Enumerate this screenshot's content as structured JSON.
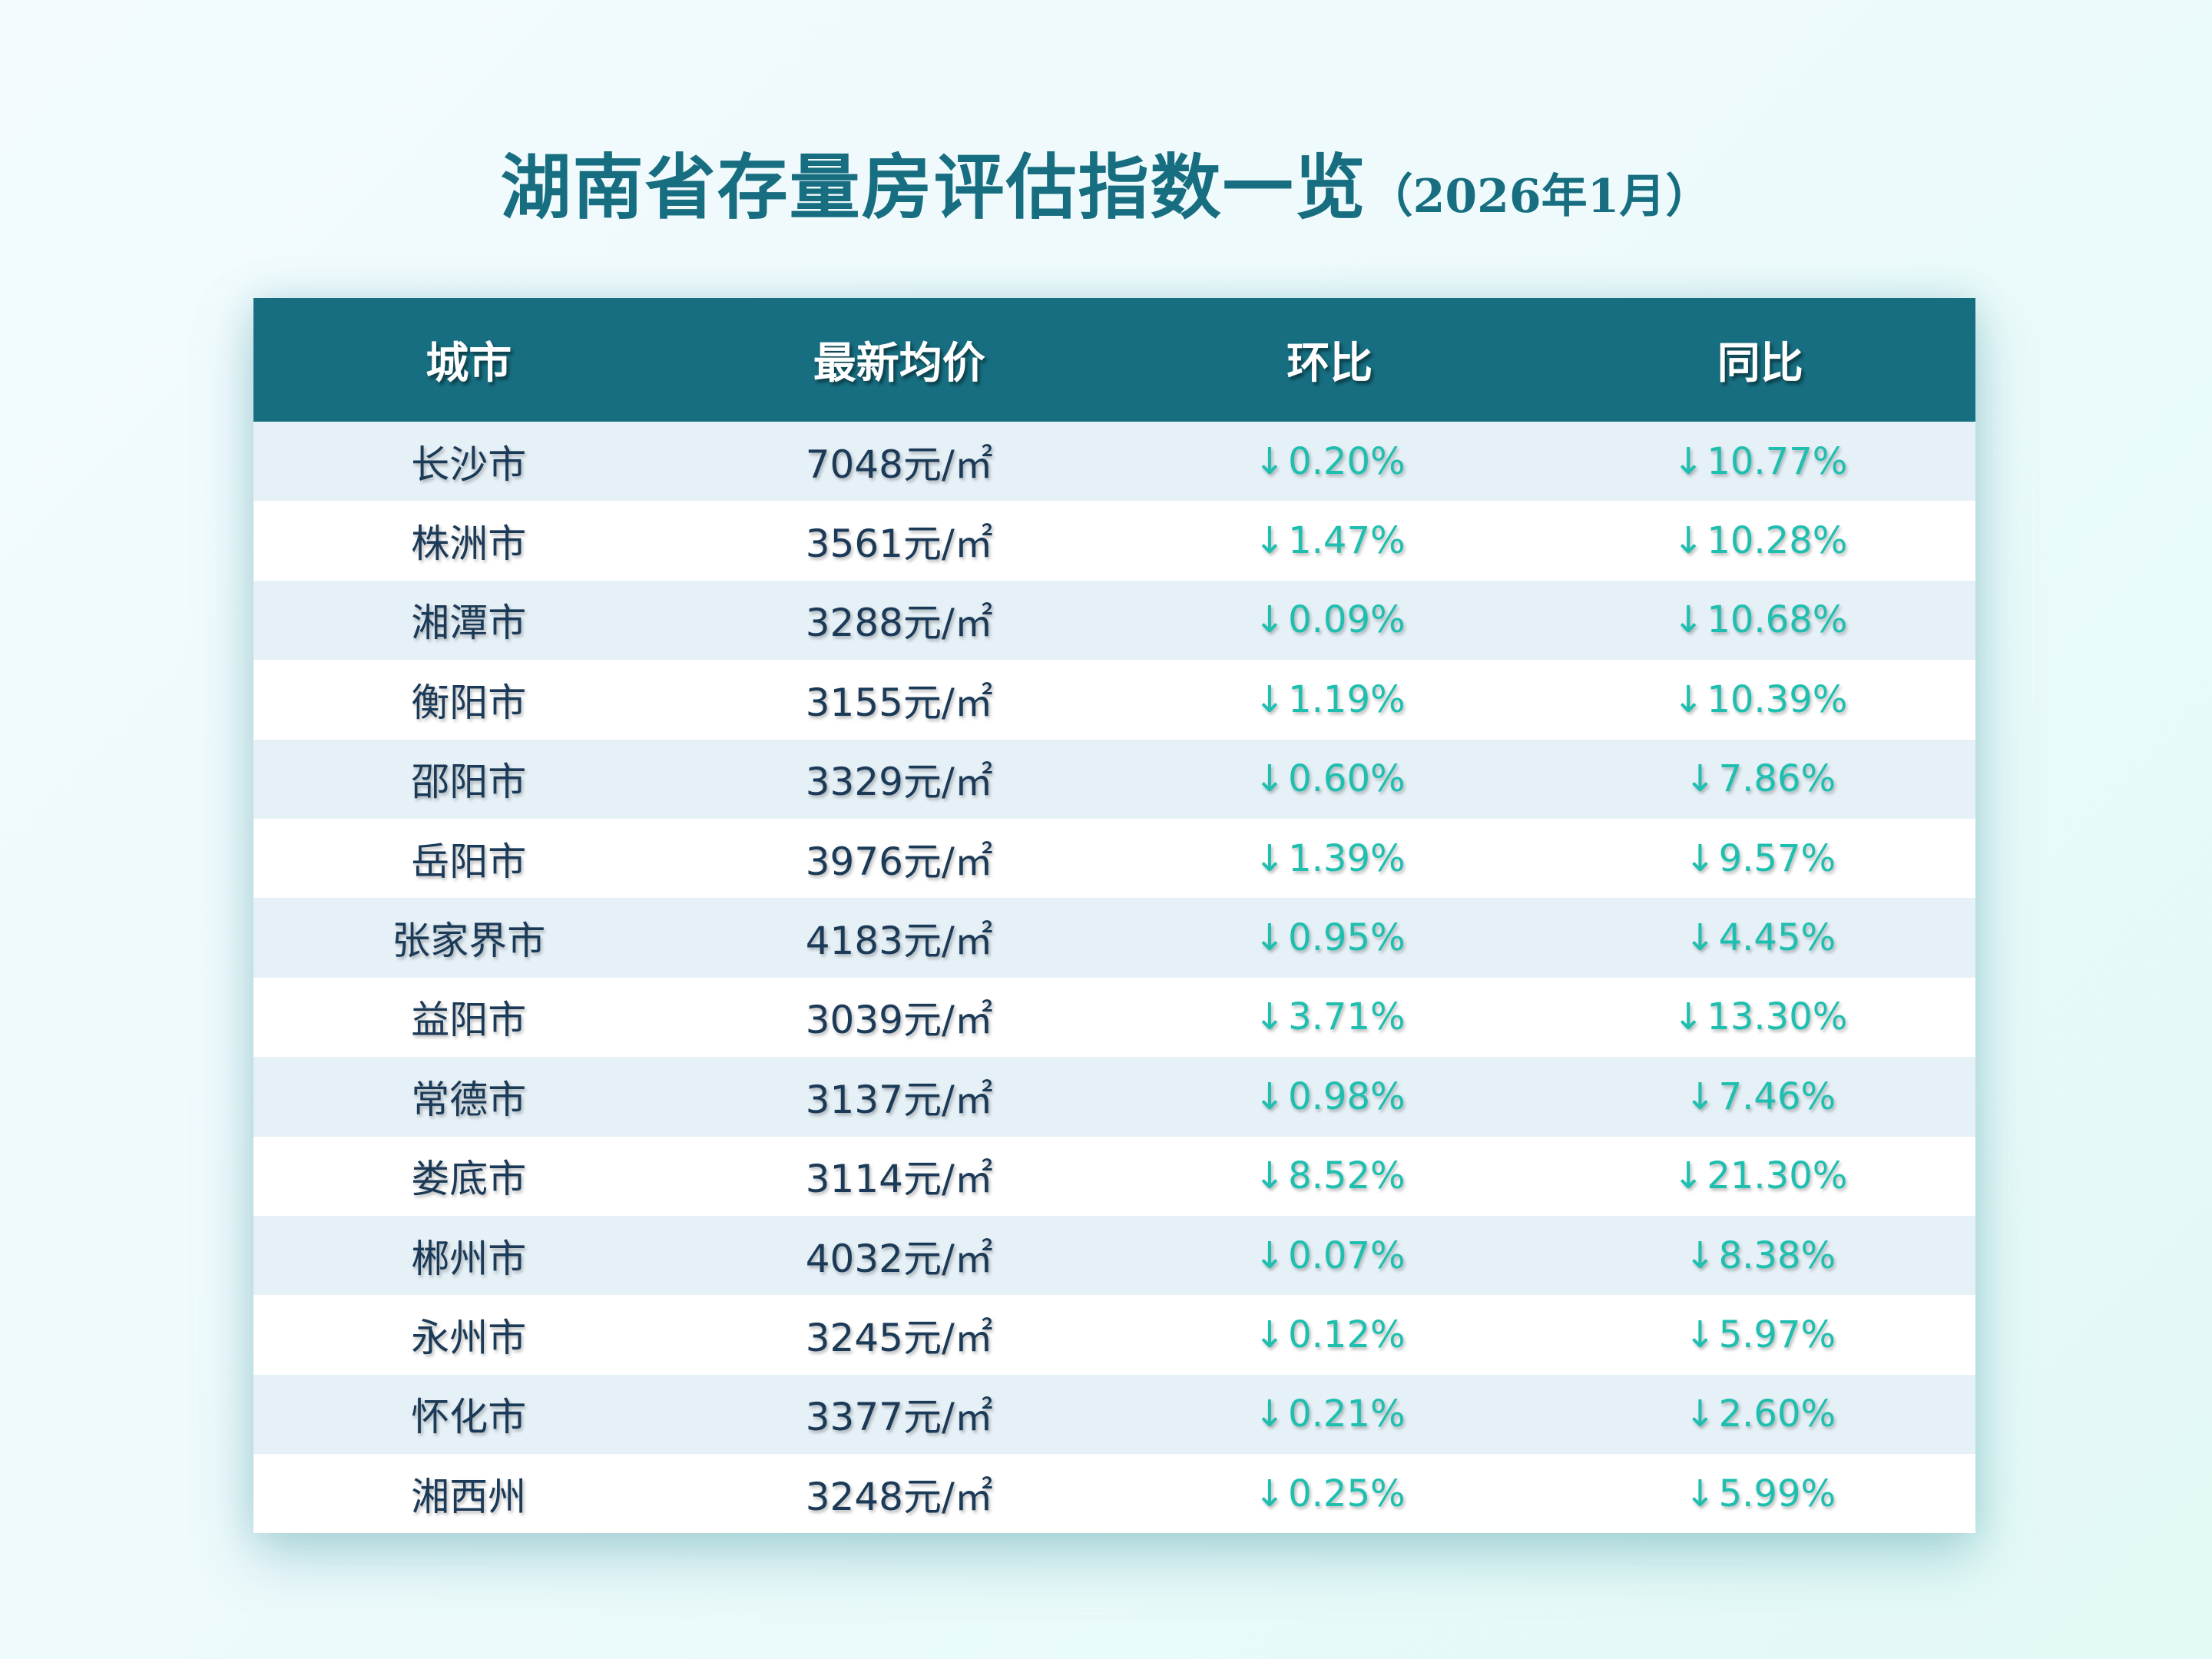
{
  "title": {
    "main": "湖南省存量房评估指数一览",
    "sub": "（2026年1月）"
  },
  "colors": {
    "title": "#176e80",
    "header_bg": "#166e80",
    "header_text": "#ffffff",
    "row_alt_bg": "#e6f1f7",
    "row_bg": "#ffffff",
    "body_text": "#1b3a57",
    "change_text": "#1fbfb0"
  },
  "table": {
    "headers": [
      "城市",
      "最新均价",
      "环比",
      "同比"
    ],
    "down_arrow": "↓",
    "unit": "元/㎡",
    "rows": [
      {
        "city": "长沙市",
        "price": "7048元/㎡",
        "mom": "0.20%",
        "yoy": "10.77%"
      },
      {
        "city": "株洲市",
        "price": "3561元/㎡",
        "mom": "1.47%",
        "yoy": "10.28%"
      },
      {
        "city": "湘潭市",
        "price": "3288元/㎡",
        "mom": "0.09%",
        "yoy": "10.68%"
      },
      {
        "city": "衡阳市",
        "price": "3155元/㎡",
        "mom": "1.19%",
        "yoy": "10.39%"
      },
      {
        "city": "邵阳市",
        "price": "3329元/㎡",
        "mom": "0.60%",
        "yoy": "7.86%"
      },
      {
        "city": "岳阳市",
        "price": "3976元/㎡",
        "mom": "1.39%",
        "yoy": "9.57%"
      },
      {
        "city": "张家界市",
        "price": "4183元/㎡",
        "mom": "0.95%",
        "yoy": "4.45%"
      },
      {
        "city": "益阳市",
        "price": "3039元/㎡",
        "mom": "3.71%",
        "yoy": "13.30%"
      },
      {
        "city": "常德市",
        "price": "3137元/㎡",
        "mom": "0.98%",
        "yoy": "7.46%"
      },
      {
        "city": "娄底市",
        "price": "3114元/㎡",
        "mom": "8.52%",
        "yoy": "21.30%"
      },
      {
        "city": "郴州市",
        "price": "4032元/㎡",
        "mom": "0.07%",
        "yoy": "8.38%"
      },
      {
        "city": "永州市",
        "price": "3245元/㎡",
        "mom": "0.12%",
        "yoy": "5.97%"
      },
      {
        "city": "怀化市",
        "price": "3377元/㎡",
        "mom": "0.21%",
        "yoy": "2.60%"
      },
      {
        "city": "湘西州",
        "price": "3248元/㎡",
        "mom": "0.25%",
        "yoy": "5.99%"
      }
    ]
  },
  "chart_data": {
    "type": "table",
    "title": "湖南省存量房评估指数一览（2026年1月）",
    "columns": [
      "城市",
      "最新均价",
      "环比",
      "同比"
    ],
    "categories": [
      "长沙市",
      "株洲市",
      "湘潭市",
      "衡阳市",
      "邵阳市",
      "岳阳市",
      "张家界市",
      "益阳市",
      "常德市",
      "娄底市",
      "郴州市",
      "永州市",
      "怀化市",
      "湘西州"
    ],
    "series": [
      {
        "name": "最新均价 (元/㎡)",
        "values": [
          7048,
          3561,
          3288,
          3155,
          3329,
          3976,
          4183,
          3039,
          3137,
          3114,
          4032,
          3245,
          3377,
          3248
        ]
      },
      {
        "name": "环比 (%)",
        "values": [
          -0.2,
          -1.47,
          -0.09,
          -1.19,
          -0.6,
          -1.39,
          -0.95,
          -3.71,
          -0.98,
          -8.52,
          -0.07,
          -0.12,
          -0.21,
          -0.25
        ]
      },
      {
        "name": "同比 (%)",
        "values": [
          -10.77,
          -10.28,
          -10.68,
          -10.39,
          -7.86,
          -9.57,
          -4.45,
          -13.3,
          -7.46,
          -21.3,
          -8.38,
          -5.97,
          -2.6,
          -5.99
        ]
      }
    ]
  }
}
